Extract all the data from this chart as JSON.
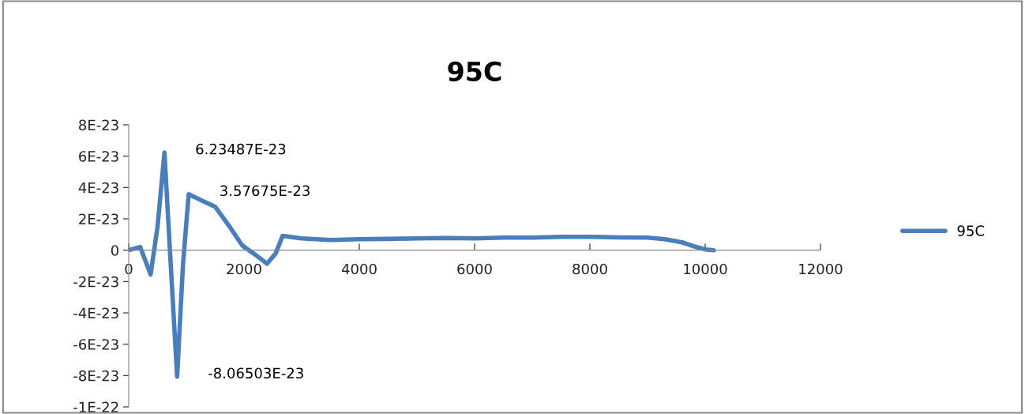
{
  "chart_data": {
    "type": "line",
    "title": "95C",
    "x": [
      0,
      200,
      380,
      500,
      620,
      730,
      840,
      940,
      1040,
      1250,
      1500,
      1750,
      1970,
      2200,
      2400,
      2550,
      2670,
      3000,
      3500,
      4000,
      4500,
      5000,
      5500,
      6000,
      6500,
      7000,
      7500,
      8000,
      8500,
      9000,
      9300,
      9600,
      9800,
      10000,
      10150
    ],
    "series": [
      {
        "name": "95C",
        "color": "#4a7ebb",
        "values": [
          0,
          2e-24,
          -1.55e-23,
          1.5e-23,
          6.23487e-23,
          -1e-23,
          -8.06503e-23,
          -1e-23,
          3.57675e-23,
          3.2e-23,
          2.77e-23,
          1.5e-23,
          3e-24,
          -3e-24,
          -8.6e-24,
          -2e-24,
          9.2e-24,
          7.5e-24,
          6.5e-24,
          7e-24,
          7.2e-24,
          7.5e-24,
          7.8e-24,
          7.5e-24,
          8e-24,
          8e-24,
          8.5e-24,
          8.5e-24,
          8.2e-24,
          8e-24,
          7e-24,
          5e-24,
          2.5e-24,
          5e-25,
          0
        ]
      }
    ],
    "xlim": [
      0,
      12000
    ],
    "xticks": [
      0,
      2000,
      4000,
      6000,
      8000,
      10000,
      12000
    ],
    "ylim": [
      -1e-22,
      8e-23
    ],
    "yticks": [
      {
        "value": -1e-22,
        "label": "-1E-22"
      },
      {
        "value": -8e-23,
        "label": "-8E-23"
      },
      {
        "value": -6e-23,
        "label": "-6E-23"
      },
      {
        "value": -4e-23,
        "label": "-4E-23"
      },
      {
        "value": -2e-23,
        "label": "-2E-23"
      },
      {
        "value": 0,
        "label": "0"
      },
      {
        "value": 2e-23,
        "label": "2E-23"
      },
      {
        "value": 4e-23,
        "label": "4E-23"
      },
      {
        "value": 6e-23,
        "label": "6E-23"
      },
      {
        "value": 8e-23,
        "label": "8E-23"
      }
    ],
    "annotations": [
      {
        "text": "6.23487E-23",
        "x": 620,
        "y": 6.23487e-23
      },
      {
        "text": "3.57675E-23",
        "x": 1040,
        "y": 3.57675e-23
      },
      {
        "text": "-8.06503E-23",
        "x": 840,
        "y": -8.06503e-23
      }
    ],
    "legend": "right",
    "grid": false,
    "marker": "none",
    "line_style": "solid"
  }
}
